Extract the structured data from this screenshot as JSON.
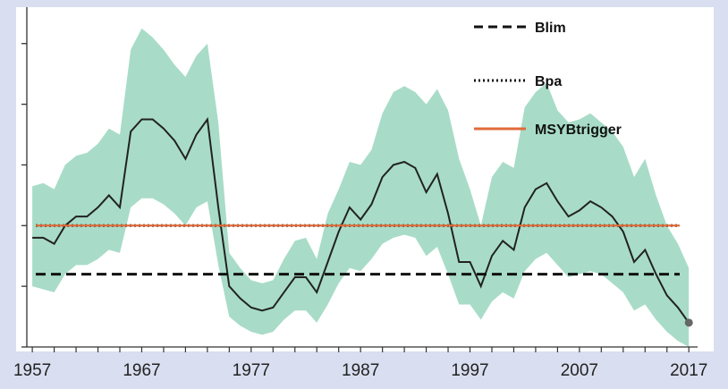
{
  "chart_data": {
    "type": "line",
    "title": "",
    "xlabel": "",
    "ylabel": "",
    "xlim": [
      1956.5,
      2017.8
    ],
    "ylim": [
      0,
      5.6
    ],
    "grid": false,
    "legend_placement": "top-right",
    "x_ticks": [
      "1957",
      "1967",
      "1977",
      "1987",
      "1997",
      "2007",
      "2017"
    ],
    "colors": {
      "band": "#a8dcc8",
      "line": "#222222",
      "blim": "#111111",
      "bpa": "#111111",
      "msy": "#e06a3a"
    },
    "series": [
      {
        "name": "",
        "style": "line-with-band",
        "x": [
          1957,
          1958,
          1959,
          1960,
          1961,
          1962,
          1963,
          1964,
          1965,
          1966,
          1967,
          1968,
          1969,
          1970,
          1971,
          1972,
          1973,
          1974,
          1975,
          1976,
          1977,
          1978,
          1979,
          1980,
          1981,
          1982,
          1983,
          1984,
          1985,
          1986,
          1987,
          1988,
          1989,
          1990,
          1991,
          1992,
          1993,
          1994,
          1995,
          1996,
          1997,
          1998,
          1999,
          2000,
          2001,
          2002,
          2003,
          2004,
          2005,
          2006,
          2007,
          2008,
          2009,
          2010,
          2011,
          2012,
          2013,
          2014,
          2015,
          2016,
          2017
        ],
        "values": [
          1.8,
          1.8,
          1.7,
          2.0,
          2.15,
          2.15,
          2.3,
          2.5,
          2.3,
          3.55,
          3.75,
          3.75,
          3.6,
          3.4,
          3.1,
          3.5,
          3.75,
          2.3,
          1.0,
          0.8,
          0.65,
          0.6,
          0.65,
          0.9,
          1.15,
          1.15,
          0.9,
          1.4,
          1.9,
          2.3,
          2.1,
          2.35,
          2.8,
          3.0,
          3.05,
          2.95,
          2.55,
          2.85,
          2.2,
          1.4,
          1.4,
          1.0,
          1.5,
          1.75,
          1.6,
          2.3,
          2.6,
          2.7,
          2.4,
          2.15,
          2.25,
          2.4,
          2.3,
          2.15,
          1.9,
          1.4,
          1.6,
          1.2,
          0.85,
          0.65,
          0.4
        ],
        "upper": [
          2.65,
          2.7,
          2.6,
          3.0,
          3.15,
          3.2,
          3.35,
          3.6,
          3.5,
          4.9,
          5.25,
          5.1,
          4.9,
          4.65,
          4.45,
          4.8,
          5.0,
          3.7,
          1.55,
          1.3,
          1.1,
          1.05,
          1.1,
          1.45,
          1.75,
          1.8,
          1.45,
          2.2,
          2.6,
          3.05,
          3.0,
          3.25,
          3.85,
          4.2,
          4.3,
          4.2,
          4.0,
          4.25,
          3.9,
          3.1,
          2.6,
          2.0,
          2.8,
          3.05,
          2.95,
          3.95,
          4.2,
          4.35,
          3.9,
          3.7,
          3.75,
          3.85,
          3.7,
          3.55,
          3.3,
          2.8,
          3.1,
          2.5,
          2.0,
          1.7,
          1.3
        ],
        "lower": [
          1.0,
          0.95,
          0.9,
          1.2,
          1.35,
          1.35,
          1.45,
          1.6,
          1.55,
          2.3,
          2.45,
          2.45,
          2.35,
          2.2,
          2.0,
          2.3,
          2.4,
          1.35,
          0.5,
          0.35,
          0.25,
          0.2,
          0.25,
          0.45,
          0.6,
          0.6,
          0.4,
          0.7,
          1.05,
          1.3,
          1.25,
          1.45,
          1.7,
          1.8,
          1.85,
          1.8,
          1.5,
          1.65,
          1.2,
          0.7,
          0.7,
          0.45,
          0.75,
          0.9,
          0.8,
          1.25,
          1.45,
          1.55,
          1.35,
          1.15,
          1.2,
          1.25,
          1.2,
          1.05,
          0.9,
          0.6,
          0.7,
          0.45,
          0.25,
          0.1,
          0.0
        ]
      }
    ],
    "reference_lines": [
      {
        "name": "Blim",
        "value": 1.2,
        "style": "dashed"
      },
      {
        "name": "Bpa",
        "value": 2.0,
        "style": "dotted"
      },
      {
        "name": "MSYBtrigger",
        "value": 2.0,
        "style": "solid"
      }
    ],
    "legend": {
      "blim_label": "Blim",
      "bpa_label": "Bpa",
      "msy_label": "MSYBtrigger"
    }
  }
}
